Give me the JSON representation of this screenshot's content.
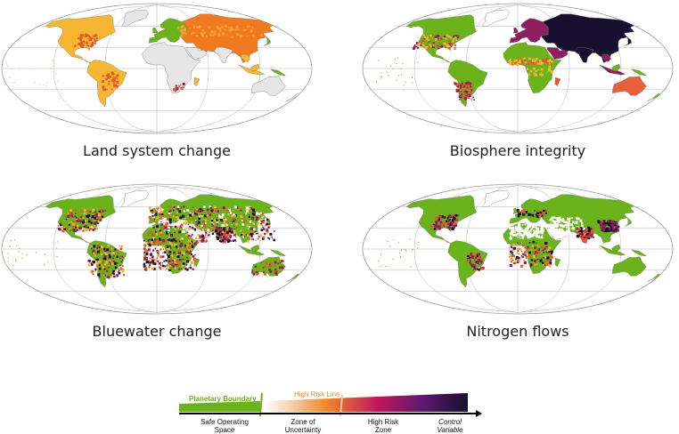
{
  "maps": [
    {
      "title": "Land system change"
    },
    {
      "title": "Biosphere integrity"
    },
    {
      "title": "Bluewater change"
    },
    {
      "title": "Nitrogen flows"
    }
  ],
  "legend": {
    "boundary_label": "Planetary Boundary",
    "risk_label": "High Risk Line",
    "zones": [
      "Safe Operating\nSpace",
      "Zone of\nUncertainty",
      "High Risk\nZone"
    ],
    "control": "Control\nVariable",
    "colors": {
      "safe": "#6ab31b",
      "uncertainty": "#f5b731",
      "high_risk_start": "#e05a2b",
      "high_risk_mid": "#8e1f5e",
      "high_risk_end": "#170f2e",
      "no_data": "#e6e6e6"
    }
  }
}
